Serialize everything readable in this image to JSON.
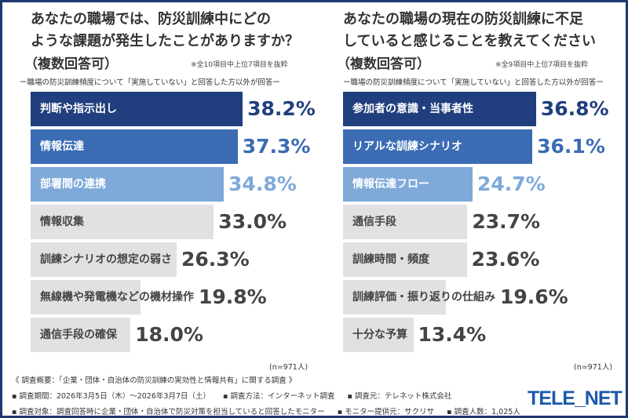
{
  "colors": {
    "rank1": "#213f7e",
    "rank2": "#3b6cb4",
    "rank3": "#7ea9d9",
    "other": "#e1e1e1",
    "other_text": "#444444",
    "frame": "#1d3a6e"
  },
  "chart_data": [
    {
      "type": "bar",
      "orientation": "horizontal",
      "title_lines": [
        "あなたの職場では、防災訓練中にどの",
        "ような課題が発生したことがありますか？"
      ],
      "subtitle": "（複数回答可）",
      "note": "※全10項目中上位7項目を抜粋",
      "condition": "ー職場の防災訓練頻度について「実施していない」と回答した方以外が回答ー",
      "categories": [
        "判断や指示出し",
        "情報伝達",
        "部署間の連携",
        "情報収集",
        "訓練シナリオの想定の弱さ",
        "無線機や発電機などの機材操作",
        "通信手段の確保"
      ],
      "values": [
        38.2,
        37.3,
        34.8,
        33.0,
        26.3,
        19.8,
        18.0
      ],
      "labels": [
        "38.2%",
        "37.3%",
        "34.8%",
        "33.0%",
        "26.3%",
        "19.8%",
        "18.0%"
      ],
      "unit": "%",
      "n": "(n=971人)"
    },
    {
      "type": "bar",
      "orientation": "horizontal",
      "title_lines": [
        "あなたの職場の現在の防災訓練に不足",
        "していると感じることを教えてください"
      ],
      "subtitle": "（複数回答可）",
      "note": "※全9項目中上位7項目を抜粋",
      "condition": "ー職場の防災訓練頻度について「実施していない」と回答した方以外が回答ー",
      "categories": [
        "参加者の意識・当事者性",
        "リアルな訓練シナリオ",
        "情報伝達フロー",
        "通信手段",
        "訓練時間・頻度",
        "訓練評価・振り返りの仕組み",
        "十分な予算"
      ],
      "values": [
        36.8,
        36.1,
        24.7,
        23.7,
        23.6,
        19.6,
        13.4
      ],
      "labels": [
        "36.8%",
        "36.1%",
        "24.7%",
        "23.7%",
        "23.6%",
        "19.6%",
        "13.4%"
      ],
      "unit": "%",
      "n": "(n=971人)"
    }
  ],
  "footer": {
    "overview": "《 調査概要：「企業・団体・自治体の防災訓練の実効性と情報共有」に関する調査 》",
    "line1": [
      "▪ 調査期間：2026年3月5日（木）〜2026年3月7日（土）",
      "▪ 調査方法：インターネット調査",
      "▪ 調査元：テレネット株式会社"
    ],
    "line2": [
      "▪ 調査対象：調査回答時に企業・団体・自治体で防災対策を担当していると回答したモニター",
      "▪ モニター提供元：サクリサ",
      "▪ 調査人数：1,025人"
    ],
    "logo": "TELE_NET"
  }
}
